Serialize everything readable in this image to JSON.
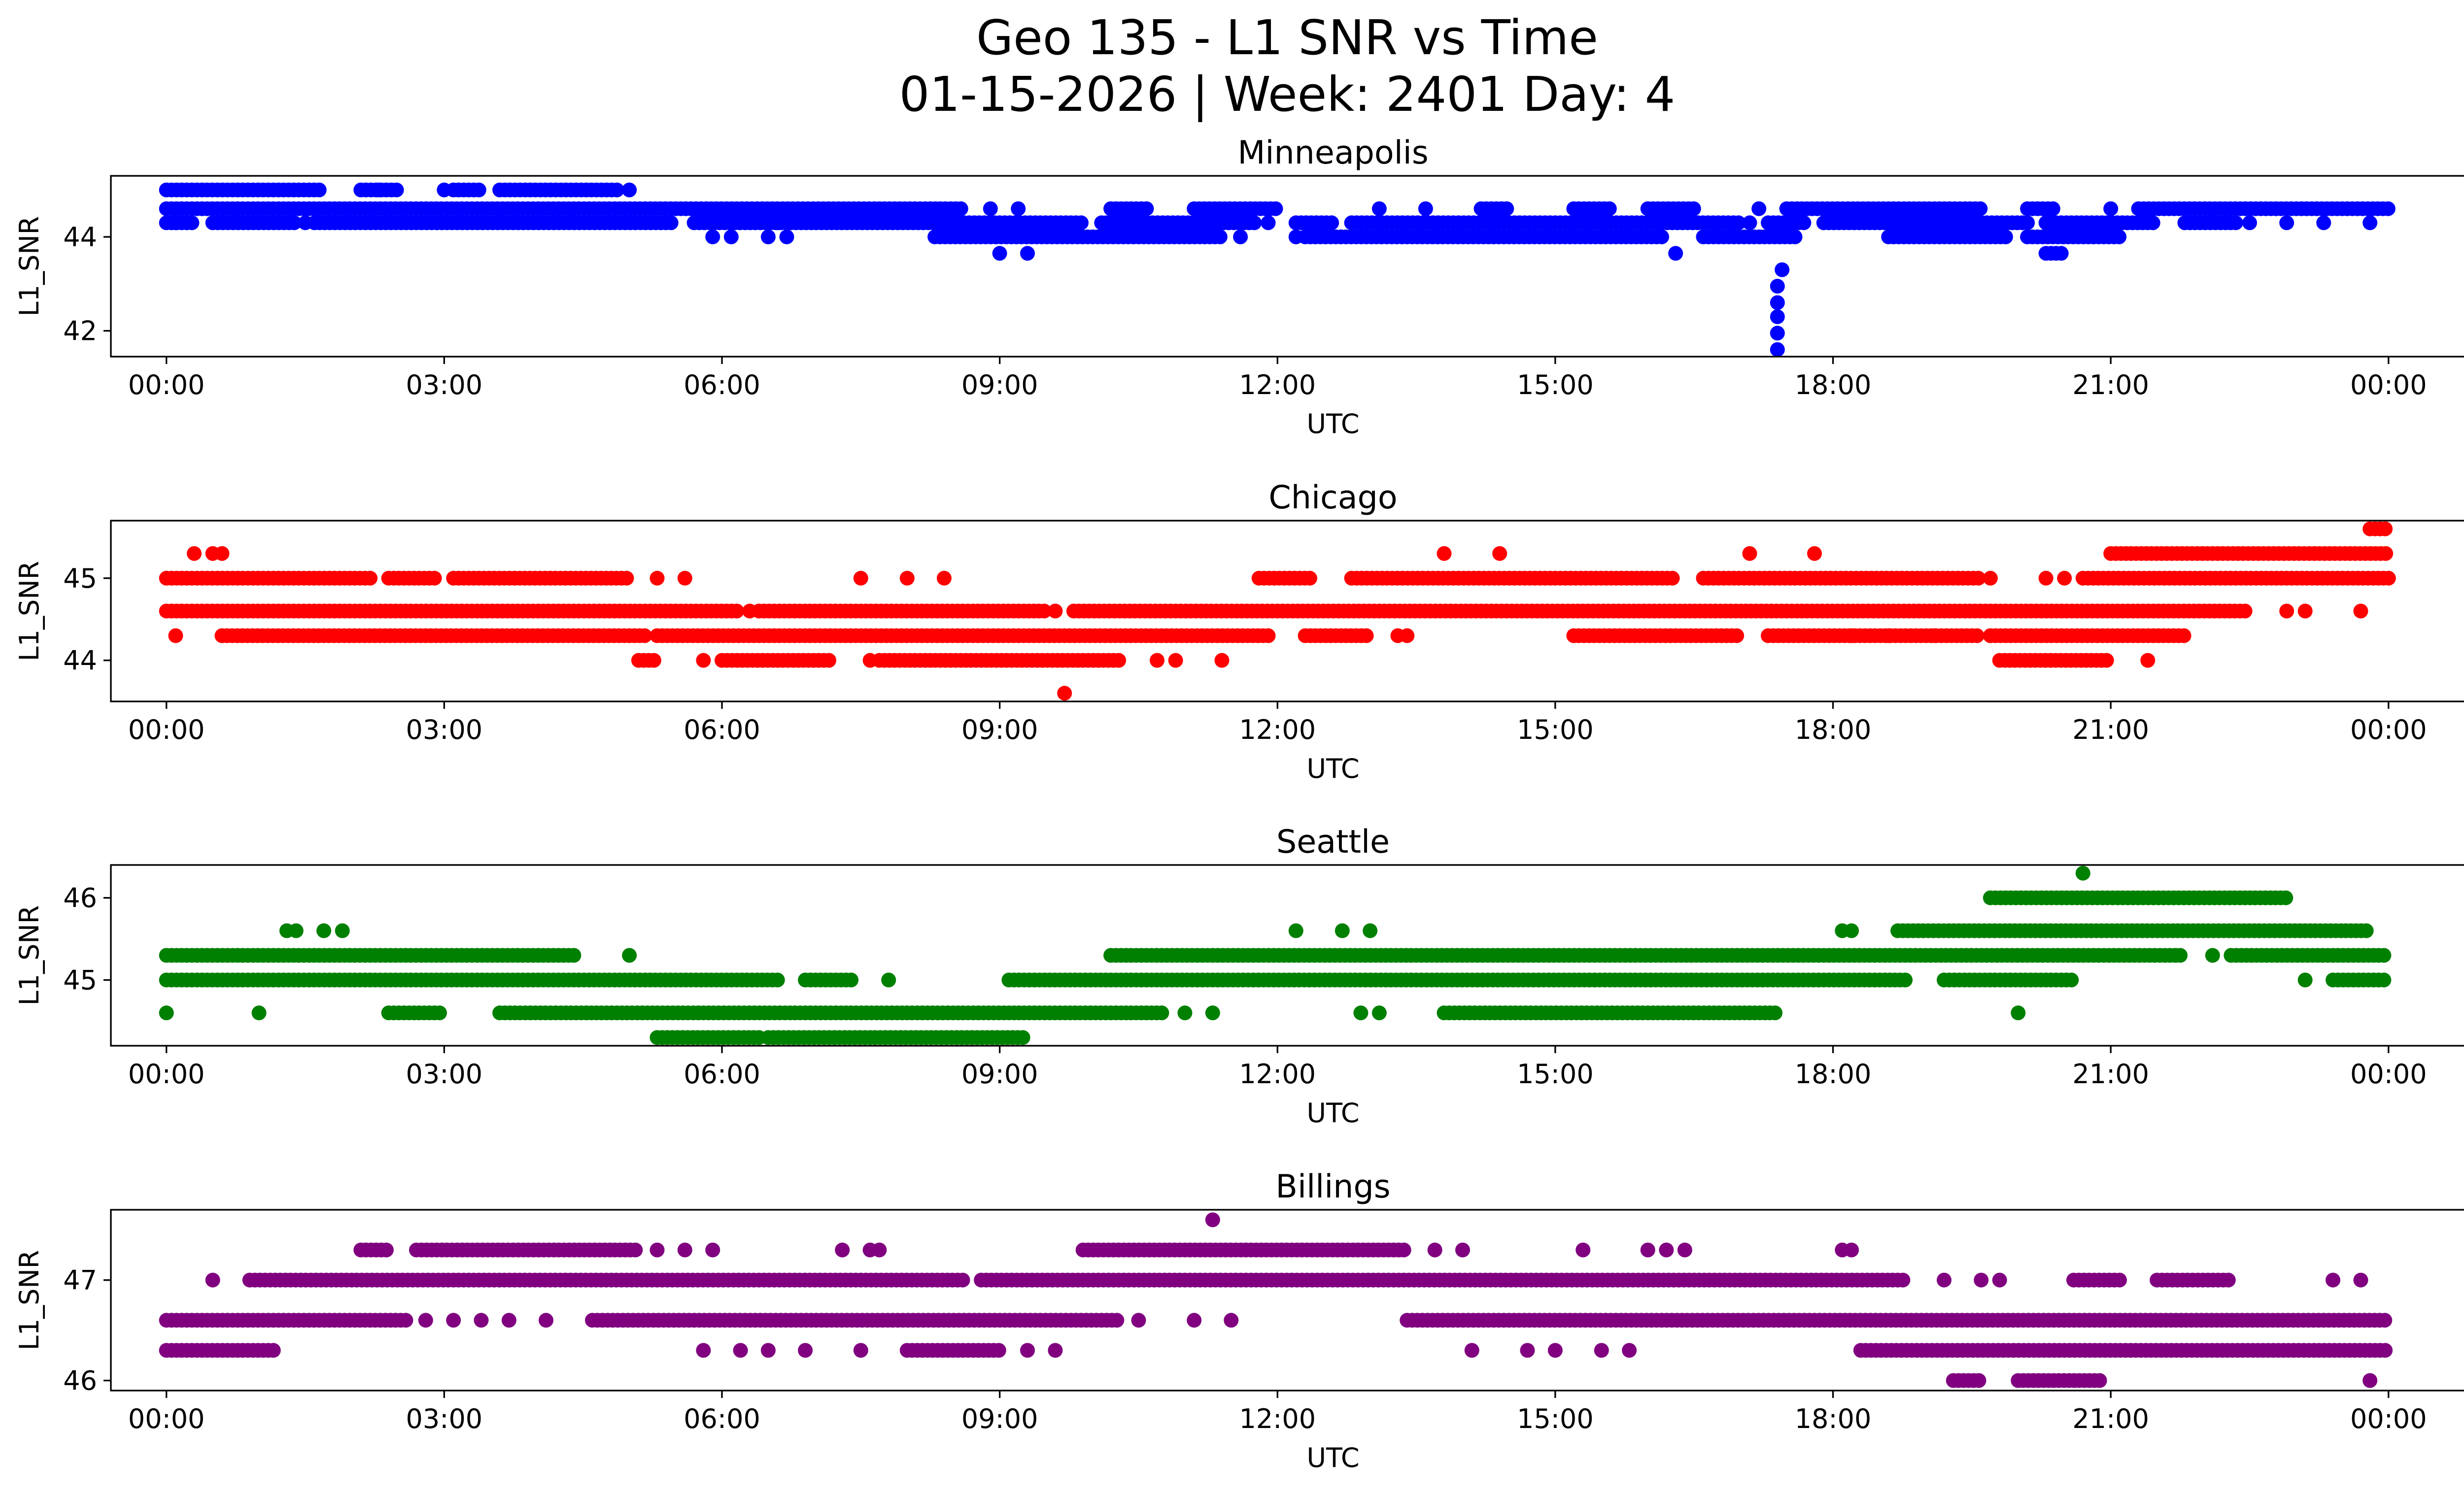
{
  "figure": {
    "title_line1": "Geo 135 - L1 SNR vs Time",
    "title_line2": "01-15-2026 | Week: 2401 Day: 4"
  },
  "chart_data": [
    {
      "type": "scatter",
      "title": "Minneapolis",
      "xlabel": "UTC",
      "ylabel": "L1_SNR",
      "color": "#0000ff",
      "xlim_hours": [
        -0.6,
        25.8
      ],
      "ylim": [
        41.45,
        45.3
      ],
      "yticks": [
        42,
        44
      ],
      "xtick_labels": [
        "00:00",
        "03:00",
        "06:00",
        "09:00",
        "12:00",
        "15:00",
        "18:00",
        "21:00",
        "00:00"
      ],
      "xtick_hours": [
        0,
        3,
        6,
        9,
        12,
        15,
        18,
        21,
        24
      ],
      "bands": [
        {
          "y": 45.0,
          "segments": [
            [
              0,
              1.7
            ],
            [
              2.1,
              2.5
            ],
            [
              3.1,
              3.4
            ],
            [
              3.6,
              4.9
            ]
          ],
          "scatter": [
            2.3,
            3.0,
            5.0
          ]
        },
        {
          "y": 44.6,
          "segments": [
            [
              0,
              8.6
            ],
            [
              10.2,
              10.6
            ],
            [
              11.1,
              12.0
            ],
            [
              14.2,
              14.5
            ],
            [
              15.2,
              15.6
            ],
            [
              16.0,
              16.5
            ],
            [
              17.5,
              19.6
            ],
            [
              20.1,
              20.4
            ],
            [
              21.3,
              24.0
            ]
          ],
          "scatter": [
            8.9,
            9.2,
            13.1,
            13.6,
            17.2,
            21.0
          ]
        },
        {
          "y": 44.3,
          "segments": [
            [
              0,
              0.3
            ],
            [
              0.5,
              1.4
            ],
            [
              1.6,
              5.5
            ],
            [
              5.7,
              9.9
            ],
            [
              10.1,
              11.8
            ],
            [
              12.2,
              12.6
            ],
            [
              12.8,
              17.0
            ],
            [
              17.3,
              17.7
            ],
            [
              17.9,
              20.1
            ],
            [
              20.3,
              21.5
            ],
            [
              21.8,
              22.4
            ]
          ],
          "scatter": [
            0.1,
            1.5,
            6.6,
            11.9,
            17.1,
            22.5,
            22.9,
            23.3,
            23.8
          ]
        },
        {
          "y": 44.0,
          "segments": [
            [
              8.3,
              11.4
            ],
            [
              12.3,
              16.2
            ],
            [
              16.6,
              17.6
            ],
            [
              18.6,
              19.9
            ],
            [
              20.1,
              21.1
            ]
          ],
          "scatter": [
            5.9,
            6.1,
            6.5,
            6.7,
            11.6,
            12.2
          ]
        },
        {
          "y": 43.65,
          "segments": [
            [
              20.3,
              20.5
            ]
          ],
          "scatter": [
            9.0,
            9.3,
            16.3
          ]
        },
        {
          "y": 43.3,
          "segments": [],
          "scatter": [
            17.45
          ]
        },
        {
          "y": 42.95,
          "segments": [],
          "scatter": [
            17.4
          ]
        },
        {
          "y": 42.6,
          "segments": [],
          "scatter": [
            17.4
          ]
        },
        {
          "y": 42.3,
          "segments": [],
          "scatter": [
            17.4
          ]
        },
        {
          "y": 41.95,
          "segments": [],
          "scatter": [
            17.4
          ]
        },
        {
          "y": 41.6,
          "segments": [],
          "scatter": [
            17.4
          ]
        }
      ]
    },
    {
      "type": "scatter",
      "title": "Chicago",
      "xlabel": "UTC",
      "ylabel": "L1_SNR",
      "color": "#ff0000",
      "xlim_hours": [
        -0.6,
        25.8
      ],
      "ylim": [
        43.5,
        45.7
      ],
      "yticks": [
        44,
        45
      ],
      "xtick_labels": [
        "00:00",
        "03:00",
        "06:00",
        "09:00",
        "12:00",
        "15:00",
        "18:00",
        "21:00",
        "00:00"
      ],
      "xtick_hours": [
        0,
        3,
        6,
        9,
        12,
        15,
        18,
        21,
        24
      ],
      "bands": [
        {
          "y": 45.6,
          "segments": [
            [
              23.8,
              24.0
            ]
          ],
          "scatter": []
        },
        {
          "y": 45.3,
          "segments": [
            [
              21.0,
              24.0
            ]
          ],
          "scatter": [
            0.3,
            0.5,
            0.6,
            13.8,
            14.4,
            17.1,
            17.8
          ]
        },
        {
          "y": 45.0,
          "segments": [
            [
              0,
              2.2
            ],
            [
              2.4,
              2.9
            ],
            [
              3.1,
              5.0
            ],
            [
              11.8,
              12.4
            ],
            [
              12.8,
              16.3
            ],
            [
              16.6,
              19.6
            ],
            [
              20.7,
              24.0
            ]
          ],
          "scatter": [
            5.3,
            5.6,
            7.5,
            8.0,
            8.4,
            19.7,
            20.3,
            20.5
          ]
        },
        {
          "y": 44.6,
          "segments": [
            [
              0,
              6.2
            ],
            [
              6.4,
              9.5
            ],
            [
              9.8,
              22.5
            ]
          ],
          "scatter": [
            6.3,
            9.6,
            22.9,
            23.1,
            23.7
          ]
        },
        {
          "y": 44.3,
          "segments": [
            [
              0.6,
              5.2
            ],
            [
              5.3,
              11.9
            ],
            [
              12.3,
              13.0
            ],
            [
              15.2,
              17.0
            ],
            [
              17.3,
              19.6
            ],
            [
              19.7,
              21.8
            ]
          ],
          "scatter": [
            0.1,
            13.3,
            13.4,
            18.2,
            18.6,
            19.1
          ]
        },
        {
          "y": 44.0,
          "segments": [
            [
              5.1,
              5.3
            ],
            [
              6.0,
              7.2
            ],
            [
              7.7,
              10.3
            ],
            [
              19.8,
              21.0
            ]
          ],
          "scatter": [
            5.8,
            7.6,
            10.7,
            10.9,
            11.4,
            21.4
          ]
        },
        {
          "y": 43.6,
          "segments": [],
          "scatter": [
            9.7
          ]
        }
      ]
    },
    {
      "type": "scatter",
      "title": "Seattle",
      "xlabel": "UTC",
      "ylabel": "L1_SNR",
      "color": "#008000",
      "xlim_hours": [
        -0.6,
        25.8
      ],
      "ylim": [
        44.2,
        46.4
      ],
      "yticks": [
        45,
        46
      ],
      "xtick_labels": [
        "00:00",
        "03:00",
        "06:00",
        "09:00",
        "12:00",
        "15:00",
        "18:00",
        "21:00",
        "00:00"
      ],
      "xtick_hours": [
        0,
        3,
        6,
        9,
        12,
        15,
        18,
        21,
        24
      ],
      "bands": [
        {
          "y": 46.3,
          "segments": [],
          "scatter": [
            20.7
          ]
        },
        {
          "y": 46.0,
          "segments": [
            [
              19.7,
              22.9
            ]
          ],
          "scatter": []
        },
        {
          "y": 45.6,
          "segments": [
            [
              18.7,
              23.8
            ]
          ],
          "scatter": [
            1.3,
            1.4,
            1.7,
            1.9,
            12.2,
            12.7,
            13.0,
            18.1,
            18.2
          ]
        },
        {
          "y": 45.3,
          "segments": [
            [
              0,
              4.4
            ],
            [
              10.2,
              21.8
            ],
            [
              22.3,
              24.0
            ]
          ],
          "scatter": [
            5.0,
            21.7,
            22.1
          ]
        },
        {
          "y": 45.0,
          "segments": [
            [
              0,
              6.6
            ],
            [
              6.9,
              7.4
            ],
            [
              9.1,
              18.8
            ],
            [
              19.2,
              20.6
            ],
            [
              23.4,
              24.0
            ]
          ],
          "scatter": [
            7.8,
            23.1
          ]
        },
        {
          "y": 44.6,
          "segments": [
            [
              2.4,
              3.0
            ],
            [
              3.6,
              10.8
            ],
            [
              13.8,
              17.4
            ]
          ],
          "scatter": [
            0.0,
            1.0,
            11.0,
            11.3,
            12.9,
            13.1,
            20.0
          ]
        },
        {
          "y": 44.3,
          "segments": [
            [
              5.3,
              6.4
            ],
            [
              6.5,
              9.3
            ]
          ],
          "scatter": []
        }
      ]
    },
    {
      "type": "scatter",
      "title": "Billings",
      "xlabel": "UTC",
      "ylabel": "L1_SNR",
      "color": "#800080",
      "xlim_hours": [
        -0.6,
        25.8
      ],
      "ylim": [
        45.9,
        47.7
      ],
      "yticks": [
        46,
        47
      ],
      "xtick_labels": [
        "00:00",
        "03:00",
        "06:00",
        "09:00",
        "12:00",
        "15:00",
        "18:00",
        "21:00",
        "00:00"
      ],
      "xtick_hours": [
        0,
        3,
        6,
        9,
        12,
        15,
        18,
        21,
        24
      ],
      "bands": [
        {
          "y": 47.6,
          "segments": [],
          "scatter": [
            11.3
          ]
        },
        {
          "y": 47.3,
          "segments": [
            [
              2.1,
              2.4
            ],
            [
              2.7,
              5.1
            ],
            [
              9.9,
              13.4
            ]
          ],
          "scatter": [
            5.3,
            5.6,
            5.9,
            7.3,
            7.6,
            7.7,
            13.7,
            14.0,
            15.3,
            16.0,
            16.2,
            16.4,
            18.1,
            18.2
          ]
        },
        {
          "y": 47.0,
          "segments": [
            [
              0.9,
              8.6
            ],
            [
              8.8,
              18.8
            ],
            [
              20.6,
              21.1
            ],
            [
              21.5,
              22.3
            ]
          ],
          "scatter": [
            0.5,
            19.2,
            19.6,
            19.8,
            23.4,
            23.7
          ]
        },
        {
          "y": 46.6,
          "segments": [
            [
              0,
              2.6
            ],
            [
              4.6,
              10.3
            ],
            [
              13.4,
              24.0
            ]
          ],
          "scatter": [
            2.8,
            3.1,
            3.4,
            3.7,
            4.1,
            10.5,
            11.1,
            11.5
          ]
        },
        {
          "y": 46.3,
          "segments": [
            [
              0,
              1.2
            ],
            [
              8.0,
              9.0
            ],
            [
              18.3,
              24.0
            ]
          ],
          "scatter": [
            5.8,
            6.2,
            6.5,
            6.9,
            7.5,
            9.3,
            9.6,
            14.1,
            14.7,
            15.0,
            15.5,
            15.8
          ]
        },
        {
          "y": 46.0,
          "segments": [
            [
              19.3,
              19.6
            ],
            [
              20.0,
              20.9
            ]
          ],
          "scatter": [
            23.8
          ]
        }
      ]
    }
  ]
}
